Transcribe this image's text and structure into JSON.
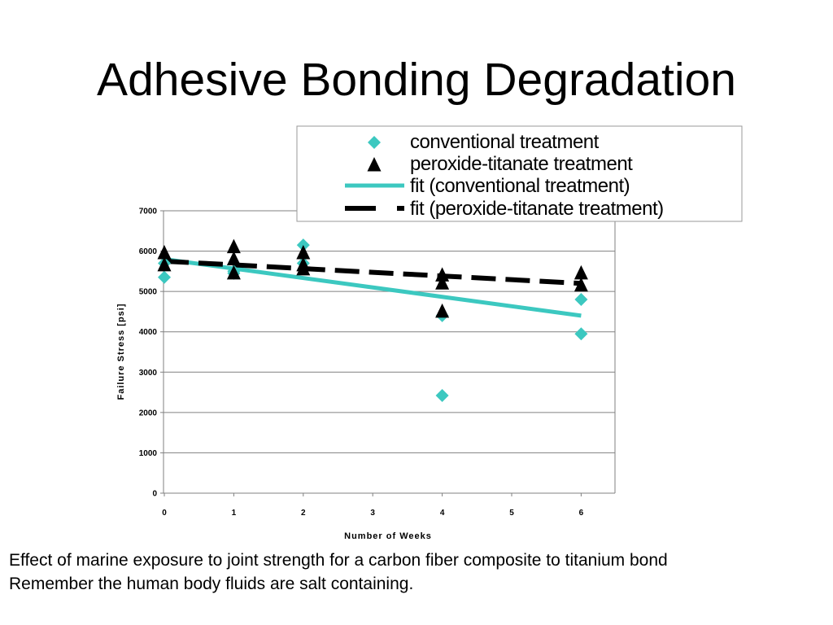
{
  "title": "Adhesive Bonding Degradation",
  "caption": {
    "line1": "Effect of marine exposure to joint strength for a carbon fiber composite to titanium bond",
    "line2": "Remember the human body fluids are salt containing."
  },
  "chart_data": {
    "type": "scatter",
    "xlabel": "Number of Weeks",
    "ylabel": "Failure Stress [psi]",
    "xlim": [
      0,
      6.5
    ],
    "ylim": [
      0,
      7000
    ],
    "xticks": [
      0,
      1,
      2,
      3,
      4,
      5,
      6
    ],
    "yticks": [
      0,
      1000,
      2000,
      3000,
      4000,
      5000,
      6000,
      7000
    ],
    "grid": "horizontal",
    "legend_position": "top-right",
    "series": [
      {
        "name": "conventional treatment",
        "kind": "points",
        "marker": "diamond",
        "color": "#3cc8c0",
        "x": [
          0,
          0,
          1,
          1,
          2,
          2,
          4,
          4,
          6,
          6
        ],
        "y": [
          5350,
          5700,
          5500,
          5450,
          6150,
          5700,
          4400,
          2420,
          4800,
          3950
        ]
      },
      {
        "name": "peroxide-titanate treatment",
        "kind": "points",
        "marker": "triangle",
        "color": "#000000",
        "x": [
          0,
          0,
          1,
          1,
          1,
          2,
          2,
          2,
          4,
          4,
          4,
          6,
          6
        ],
        "y": [
          5950,
          5650,
          6100,
          5800,
          5450,
          5950,
          5550,
          5650,
          5400,
          5200,
          4500,
          5450,
          5150
        ]
      },
      {
        "name": "fit (conventional treatment)",
        "kind": "line",
        "style": "solid",
        "color": "#3cc8c0",
        "x": [
          0,
          6
        ],
        "y": [
          5800,
          4400
        ]
      },
      {
        "name": "fit (peroxide-titanate treatment)",
        "kind": "line",
        "style": "dashed",
        "color": "#000000",
        "x": [
          0,
          6
        ],
        "y": [
          5750,
          5200
        ]
      }
    ]
  }
}
